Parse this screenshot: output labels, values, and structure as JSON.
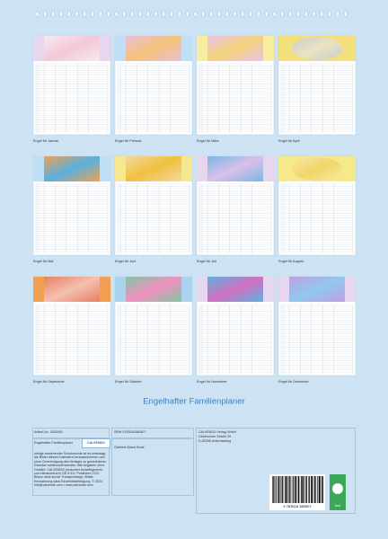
{
  "title": "Engelhafter Familienplaner",
  "months": [
    {
      "caption": "Engel für Januar"
    },
    {
      "caption": "Engel für Februar"
    },
    {
      "caption": "Engel für März"
    },
    {
      "caption": "Engel für April"
    },
    {
      "caption": "Engel für Mai"
    },
    {
      "caption": "Engel für Juni"
    },
    {
      "caption": "Engel für Juli"
    },
    {
      "caption": "Engel für August"
    },
    {
      "caption": "Engel für September"
    },
    {
      "caption": "Engel für Oktober"
    },
    {
      "caption": "Engel für November"
    },
    {
      "caption": "Engel für Dezember"
    }
  ],
  "info": {
    "article": "Artikel-Nr.: 3053093",
    "product": "Engelhafter Familienplaner",
    "logo": "CALVENDO",
    "notice": "Infolge bestehender Schutzrechte ist es untersagt, die Bilder dieses Kalenders herauszutrennen und ohne Genehmigung des Verlages zu gewerblichen Zwecken weiterzuverwenden. Alle Angaben ohne Gewähr. CALVENDO produziert bedarfsgerecht und klimaneutral in DE & EU. Positivere CO2-Bilanz dank kurzer Transportwege. Abfall-Reduzierung dank Einzelstückfertigung. © 2024 info@calvendo.com • www.calvendo.com",
    "isbn": "ISBN 9783516380507",
    "author": "Gabriele-Diana Bode",
    "publisher": [
      "CALVENDO Verlag GmbH",
      "Ottobrunner Straße 39",
      "D-82008 Unterhaching"
    ],
    "barcode": "9 783516 380507",
    "eco": "eco"
  }
}
